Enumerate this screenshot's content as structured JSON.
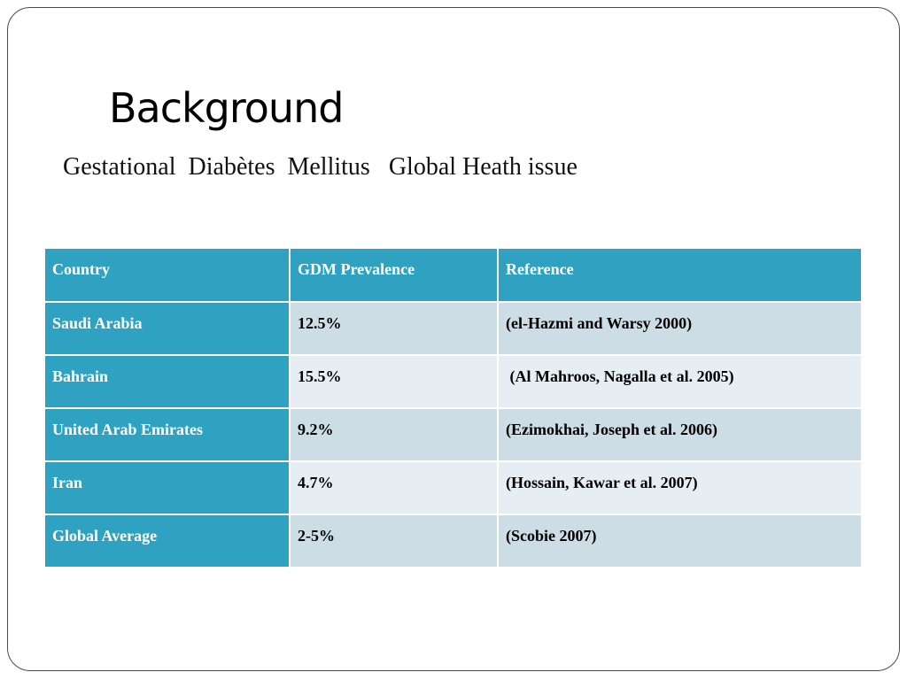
{
  "slide": {
    "title": "Background",
    "subtitle": "Gestational  Diabètes  Mellitus   Global Heath issue"
  },
  "table": {
    "headers": [
      "Country",
      "GDM Prevalence",
      "Reference"
    ],
    "rows": [
      {
        "country": "Saudi Arabia",
        "prevalence": "12.5%",
        "reference": "(el-Hazmi and Warsy 2000)"
      },
      {
        "country": "Bahrain",
        "prevalence": "15.5%",
        "reference": " (Al Mahroos, Nagalla et al. 2005)"
      },
      {
        "country": "United Arab Emirates",
        "prevalence": "9.2%",
        "reference": "(Ezimokhai, Joseph et al. 2006)"
      },
      {
        "country": "Iran",
        "prevalence": "4.7%",
        "reference": "(Hossain, Kawar et al. 2007)"
      },
      {
        "country": "Global Average",
        "prevalence": "2-5%",
        "reference": "(Scobie 2007)"
      }
    ]
  },
  "colors": {
    "header_bg": "#2fa2c1",
    "row_dark_bg": "#cddde6",
    "row_light_bg": "#e7eef3"
  }
}
